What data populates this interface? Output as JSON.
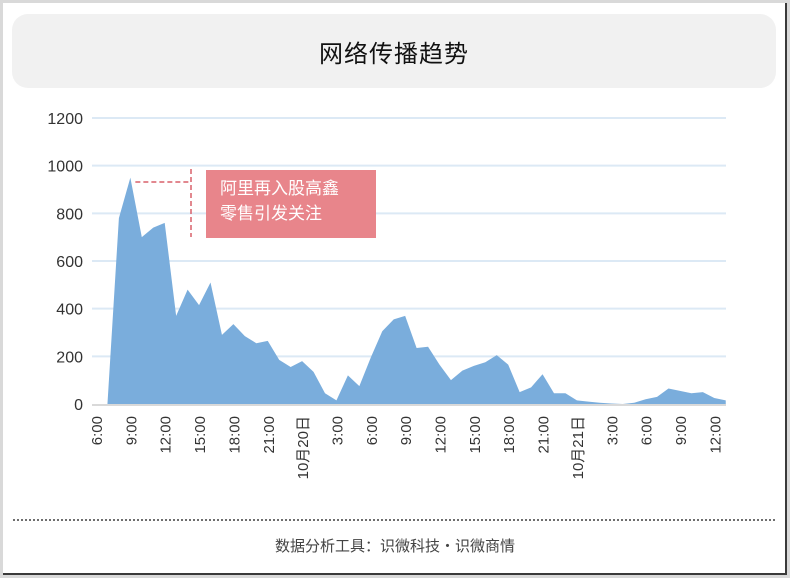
{
  "title": "网络传播趋势",
  "annotation": {
    "line1": "阿里再入股高鑫",
    "line2": "零售引发关注",
    "color": "#e8858b"
  },
  "footer": "数据分析工具：识微科技・识微商情",
  "colors": {
    "area": "#7aaddc",
    "grid": "#dce9f5",
    "axis": "#d9d9d9",
    "title_bg": "#f1f1f1"
  },
  "chart_data": {
    "type": "area",
    "title": "网络传播趋势",
    "xlabel": "",
    "ylabel": "",
    "ylim": [
      0,
      1200
    ],
    "yticks": [
      0,
      200,
      400,
      600,
      800,
      1000,
      1200
    ],
    "grid": true,
    "legend": "none",
    "xtick_labels": [
      "6:00",
      "9:00",
      "12:00",
      "15:00",
      "18:00",
      "21:00",
      "10月20日",
      "3:00",
      "6:00",
      "9:00",
      "12:00",
      "15:00",
      "18:00",
      "21:00",
      "10月21日",
      "3:00",
      "6:00",
      "9:00",
      "12:00"
    ],
    "x": [
      "6:00",
      "7:00",
      "8:00",
      "9:00",
      "10:00",
      "11:00",
      "12:00",
      "13:00",
      "14:00",
      "15:00",
      "16:00",
      "17:00",
      "18:00",
      "19:00",
      "20:00",
      "21:00",
      "22:00",
      "23:00",
      "10月20日 0:00",
      "1:00",
      "2:00",
      "3:00",
      "4:00",
      "5:00",
      "6:00",
      "7:00",
      "8:00",
      "9:00",
      "10:00",
      "11:00",
      "12:00",
      "13:00",
      "14:00",
      "15:00",
      "16:00",
      "17:00",
      "18:00",
      "19:00",
      "20:00",
      "21:00",
      "22:00",
      "23:00",
      "10月21日 0:00",
      "1:00",
      "2:00",
      "3:00",
      "4:00",
      "5:00",
      "6:00",
      "7:00",
      "8:00",
      "9:00",
      "10:00",
      "11:00",
      "12:00",
      "13:00"
    ],
    "values": [
      0,
      0,
      780,
      950,
      700,
      740,
      760,
      370,
      480,
      415,
      510,
      290,
      335,
      285,
      255,
      265,
      185,
      155,
      180,
      135,
      45,
      15,
      120,
      75,
      195,
      305,
      355,
      370,
      235,
      240,
      165,
      100,
      140,
      160,
      175,
      205,
      165,
      50,
      70,
      125,
      45,
      45,
      15,
      10,
      5,
      2,
      0,
      5,
      20,
      30,
      65,
      55,
      45,
      50,
      25,
      15
    ],
    "annotations": [
      {
        "text": "阿里再入股高鑫零售引发关注",
        "at": "8:00",
        "value": 950
      }
    ]
  }
}
